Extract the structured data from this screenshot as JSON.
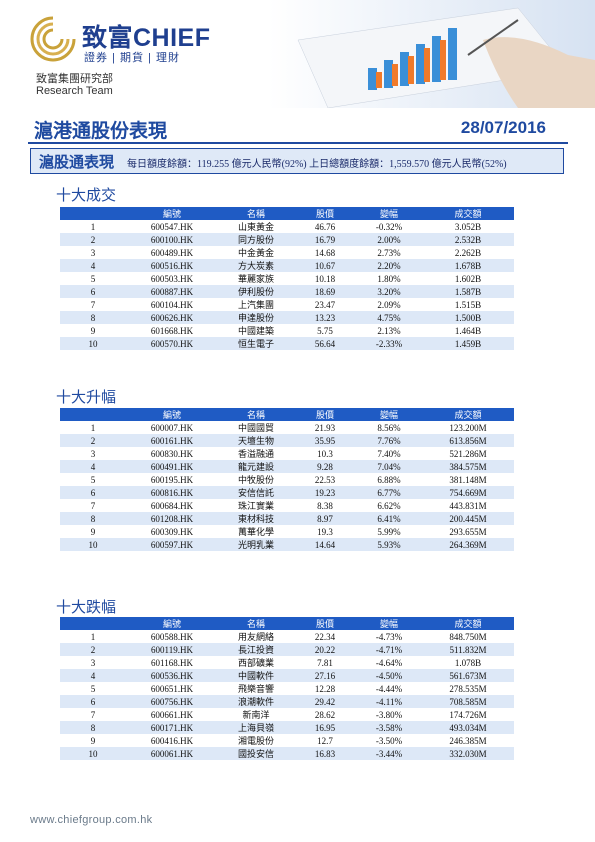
{
  "header": {
    "company_name": "致富CHIEF",
    "tagline": "證券 | 期貨 | 理財",
    "department": "致富集團研究部",
    "team": "Research Team",
    "title": "滬港通股份表現",
    "date": "28/07/2016"
  },
  "quota": {
    "label": "滬股通表現",
    "text": "每日額度餘額：119.255 億元人民幣(92%)    上日總額度餘額：1,559.570 億元人民幣(52%)"
  },
  "columns": [
    "編號",
    "名稱",
    "股價",
    "變幅",
    "成交額"
  ],
  "sections": [
    {
      "title": "十大成交",
      "rows": [
        {
          "rank": "1",
          "code": "600547.HK",
          "name": "山東黃金",
          "price": "46.76",
          "change": "-0.32%",
          "turnover": "3.052B",
          "dir": "neg"
        },
        {
          "rank": "2",
          "code": "600100.HK",
          "name": "同方股份",
          "price": "16.79",
          "change": "2.00%",
          "turnover": "2.532B",
          "dir": "pos"
        },
        {
          "rank": "3",
          "code": "600489.HK",
          "name": "中金黃金",
          "price": "14.68",
          "change": "2.73%",
          "turnover": "2.262B",
          "dir": "pos"
        },
        {
          "rank": "4",
          "code": "600516.HK",
          "name": "方大炭素",
          "price": "10.67",
          "change": "2.20%",
          "turnover": "1.678B",
          "dir": "pos"
        },
        {
          "rank": "5",
          "code": "600503.HK",
          "name": "華麗家族",
          "price": "10.18",
          "change": "1.80%",
          "turnover": "1.602B",
          "dir": "pos"
        },
        {
          "rank": "6",
          "code": "600887.HK",
          "name": "伊利股份",
          "price": "18.69",
          "change": "3.20%",
          "turnover": "1.587B",
          "dir": "pos"
        },
        {
          "rank": "7",
          "code": "600104.HK",
          "name": "上汽集團",
          "price": "23.47",
          "change": "2.09%",
          "turnover": "1.515B",
          "dir": "pos"
        },
        {
          "rank": "8",
          "code": "600626.HK",
          "name": "申達股份",
          "price": "13.23",
          "change": "4.75%",
          "turnover": "1.500B",
          "dir": "pos"
        },
        {
          "rank": "9",
          "code": "601668.HK",
          "name": "中國建築",
          "price": "5.75",
          "change": "2.13%",
          "turnover": "1.464B",
          "dir": "pos"
        },
        {
          "rank": "10",
          "code": "600570.HK",
          "name": "恒生電子",
          "price": "56.64",
          "change": "-2.33%",
          "turnover": "1.459B",
          "dir": "neg"
        }
      ]
    },
    {
      "title": "十大升幅",
      "rows": [
        {
          "rank": "1",
          "code": "600007.HK",
          "name": "中國國貿",
          "price": "21.93",
          "change": "8.56%",
          "turnover": "123.200M",
          "dir": "pos"
        },
        {
          "rank": "2",
          "code": "600161.HK",
          "name": "天壇生物",
          "price": "35.95",
          "change": "7.76%",
          "turnover": "613.856M",
          "dir": "pos"
        },
        {
          "rank": "3",
          "code": "600830.HK",
          "name": "香溢融通",
          "price": "10.3",
          "change": "7.40%",
          "turnover": "521.286M",
          "dir": "pos"
        },
        {
          "rank": "4",
          "code": "600491.HK",
          "name": "龍元建設",
          "price": "9.28",
          "change": "7.04%",
          "turnover": "384.575M",
          "dir": "pos"
        },
        {
          "rank": "5",
          "code": "600195.HK",
          "name": "中牧股份",
          "price": "22.53",
          "change": "6.88%",
          "turnover": "381.148M",
          "dir": "pos"
        },
        {
          "rank": "6",
          "code": "600816.HK",
          "name": "安信信託",
          "price": "19.23",
          "change": "6.77%",
          "turnover": "754.669M",
          "dir": "pos"
        },
        {
          "rank": "7",
          "code": "600684.HK",
          "name": "珠江實業",
          "price": "8.38",
          "change": "6.62%",
          "turnover": "443.831M",
          "dir": "pos"
        },
        {
          "rank": "8",
          "code": "601208.HK",
          "name": "東材科技",
          "price": "8.97",
          "change": "6.41%",
          "turnover": "200.445M",
          "dir": "pos"
        },
        {
          "rank": "9",
          "code": "600309.HK",
          "name": "萬華化學",
          "price": "19.3",
          "change": "5.99%",
          "turnover": "293.655M",
          "dir": "pos"
        },
        {
          "rank": "10",
          "code": "600597.HK",
          "name": "光明乳業",
          "price": "14.64",
          "change": "5.93%",
          "turnover": "264.369M",
          "dir": "pos"
        }
      ]
    },
    {
      "title": "十大跌幅",
      "rows": [
        {
          "rank": "1",
          "code": "600588.HK",
          "name": "用友網絡",
          "price": "22.34",
          "change": "-4.73%",
          "turnover": "848.750M",
          "dir": "neg"
        },
        {
          "rank": "2",
          "code": "600119.HK",
          "name": "長江投資",
          "price": "20.22",
          "change": "-4.71%",
          "turnover": "511.832M",
          "dir": "neg"
        },
        {
          "rank": "3",
          "code": "601168.HK",
          "name": "西部礦業",
          "price": "7.81",
          "change": "-4.64%",
          "turnover": "1.078B",
          "dir": "neg"
        },
        {
          "rank": "4",
          "code": "600536.HK",
          "name": "中國軟件",
          "price": "27.16",
          "change": "-4.50%",
          "turnover": "561.673M",
          "dir": "neg"
        },
        {
          "rank": "5",
          "code": "600651.HK",
          "name": "飛樂音響",
          "price": "12.28",
          "change": "-4.44%",
          "turnover": "278.535M",
          "dir": "neg"
        },
        {
          "rank": "6",
          "code": "600756.HK",
          "name": "浪潮軟件",
          "price": "29.42",
          "change": "-4.11%",
          "turnover": "708.585M",
          "dir": "neg"
        },
        {
          "rank": "7",
          "code": "600661.HK",
          "name": "新南洋",
          "price": "28.62",
          "change": "-3.80%",
          "turnover": "174.726M",
          "dir": "neg"
        },
        {
          "rank": "8",
          "code": "600171.HK",
          "name": "上海貝嶺",
          "price": "16.95",
          "change": "-3.58%",
          "turnover": "493.034M",
          "dir": "neg"
        },
        {
          "rank": "9",
          "code": "600416.HK",
          "name": "湘電股份",
          "price": "12.7",
          "change": "-3.50%",
          "turnover": "246.385M",
          "dir": "neg"
        },
        {
          "rank": "10",
          "code": "600061.HK",
          "name": "國投安信",
          "price": "16.83",
          "change": "-3.44%",
          "turnover": "332.030M",
          "dir": "neg"
        }
      ]
    }
  ],
  "footer": "www.chiefgroup.com.hk",
  "colors": {
    "accent": "#1f4aa0",
    "header_row": "#1f5bc4",
    "alt_row": "#dde8f7",
    "positive": "#2aa43a",
    "negative": "#e02020"
  }
}
